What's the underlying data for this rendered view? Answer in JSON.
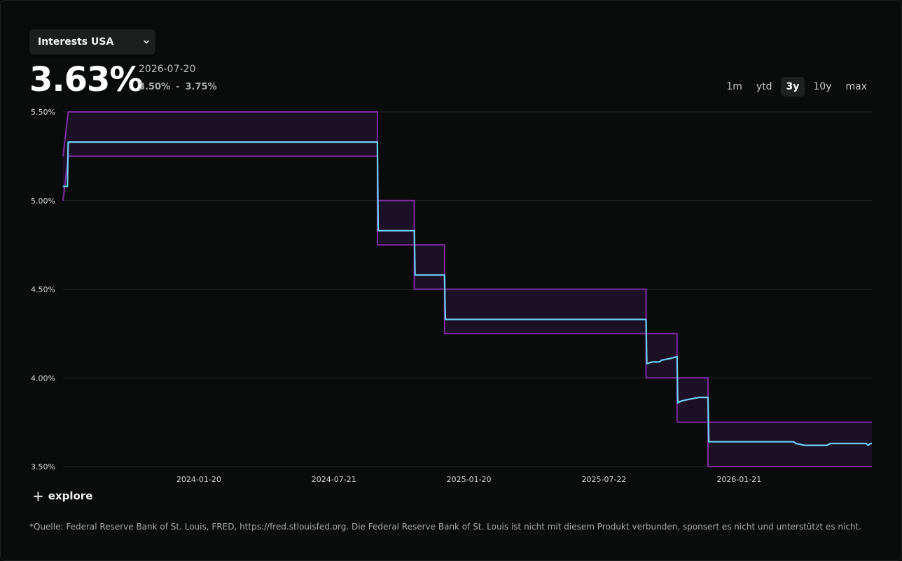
{
  "selector": {
    "label": "Interests USA"
  },
  "summary": {
    "value": "3.63%",
    "date": "2026-07-20",
    "range_low": "3.50%",
    "range_sep": "-",
    "range_high": "3.75%"
  },
  "time_ranges": [
    {
      "label": "1m",
      "active": false
    },
    {
      "label": "ytd",
      "active": false
    },
    {
      "label": "3y",
      "active": true
    },
    {
      "label": "10y",
      "active": false
    },
    {
      "label": "max",
      "active": false
    }
  ],
  "explore_label": "explore",
  "footnote": "*Quelle: Federal Reserve Bank of St. Louis, FRED, https://fred.stlouisfed.org. Die Federal Reserve Bank of St. Louis ist nicht mit diesem Produkt verbunden, sponsert es nicht und unterstützt es nicht.",
  "colors": {
    "band": "#7b2a9e",
    "band_fill": "#1c1027",
    "rate": "#6fd0f5",
    "grid": "#262a28"
  },
  "chart_data": {
    "type": "line",
    "xlim": [
      "2023-07-20",
      "2026-07-20"
    ],
    "ylim": [
      3.5,
      5.5
    ],
    "y_ticks": [
      {
        "value": 5.5,
        "label": "5.50%"
      },
      {
        "value": 5.0,
        "label": "5.00%"
      },
      {
        "value": 4.5,
        "label": "4.50%"
      },
      {
        "value": 4.0,
        "label": "4.00%"
      },
      {
        "value": 3.5,
        "label": "3.50%"
      }
    ],
    "x_ticks": [
      "2024-01-20",
      "2024-07-21",
      "2025-01-20",
      "2025-07-22",
      "2026-01-21"
    ],
    "grid": true,
    "series": [
      {
        "kind": "band-upper",
        "points": [
          [
            "2023-07-20",
            5.25
          ],
          [
            "2023-07-27",
            5.5
          ],
          [
            "2024-09-18",
            5.5
          ],
          [
            "2024-09-18",
            5.0
          ],
          [
            "2024-11-07",
            5.0
          ],
          [
            "2024-11-07",
            4.75
          ],
          [
            "2024-12-18",
            4.75
          ],
          [
            "2024-12-18",
            4.5
          ],
          [
            "2025-09-17",
            4.5
          ],
          [
            "2025-09-17",
            4.25
          ],
          [
            "2025-10-29",
            4.25
          ],
          [
            "2025-10-29",
            4.0
          ],
          [
            "2025-12-10",
            4.0
          ],
          [
            "2025-12-10",
            3.75
          ],
          [
            "2026-07-20",
            3.75
          ]
        ]
      },
      {
        "kind": "band-lower",
        "points": [
          [
            "2023-07-20",
            5.0
          ],
          [
            "2023-07-27",
            5.25
          ],
          [
            "2024-09-18",
            5.25
          ],
          [
            "2024-09-18",
            4.75
          ],
          [
            "2024-11-07",
            4.75
          ],
          [
            "2024-11-07",
            4.5
          ],
          [
            "2024-12-18",
            4.5
          ],
          [
            "2024-12-18",
            4.25
          ],
          [
            "2025-09-17",
            4.25
          ],
          [
            "2025-09-17",
            4.0
          ],
          [
            "2025-10-29",
            4.0
          ],
          [
            "2025-10-29",
            3.75
          ],
          [
            "2025-12-10",
            3.75
          ],
          [
            "2025-12-10",
            3.5
          ],
          [
            "2026-07-20",
            3.5
          ]
        ]
      },
      {
        "kind": "rate",
        "points": [
          [
            "2023-07-20",
            5.08
          ],
          [
            "2023-07-26",
            5.08
          ],
          [
            "2023-07-27",
            5.33
          ],
          [
            "2024-09-18",
            5.33
          ],
          [
            "2024-09-19",
            4.83
          ],
          [
            "2024-11-07",
            4.83
          ],
          [
            "2024-11-08",
            4.58
          ],
          [
            "2024-12-18",
            4.58
          ],
          [
            "2024-12-19",
            4.33
          ],
          [
            "2025-09-17",
            4.33
          ],
          [
            "2025-09-18",
            4.08
          ],
          [
            "2025-09-25",
            4.09
          ],
          [
            "2025-10-05",
            4.09
          ],
          [
            "2025-10-08",
            4.1
          ],
          [
            "2025-10-20",
            4.11
          ],
          [
            "2025-10-29",
            4.12
          ],
          [
            "2025-10-30",
            3.86
          ],
          [
            "2025-11-04",
            3.87
          ],
          [
            "2025-11-15",
            3.88
          ],
          [
            "2025-11-28",
            3.89
          ],
          [
            "2025-12-10",
            3.89
          ],
          [
            "2025-12-11",
            3.64
          ],
          [
            "2026-04-05",
            3.64
          ],
          [
            "2026-04-08",
            3.63
          ],
          [
            "2026-04-20",
            3.62
          ],
          [
            "2026-05-20",
            3.62
          ],
          [
            "2026-05-25",
            3.63
          ],
          [
            "2026-07-12",
            3.63
          ],
          [
            "2026-07-15",
            3.62
          ],
          [
            "2026-07-18",
            3.63
          ],
          [
            "2026-07-20",
            3.63
          ]
        ]
      }
    ]
  }
}
